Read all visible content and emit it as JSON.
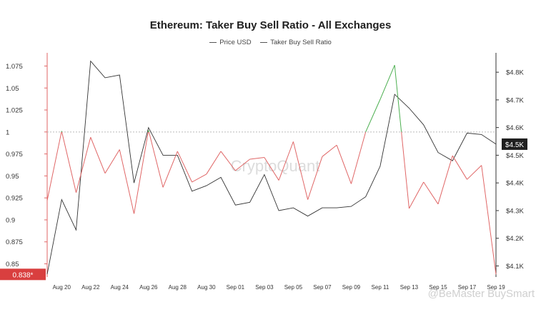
{
  "chart_data": {
    "type": "line",
    "title": "Ethereum: Taker Buy Sell Ratio - All Exchanges",
    "legend_placement": "top-center",
    "grid": false,
    "x": [
      "Aug 19",
      "Aug 20",
      "Aug 21",
      "Aug 22",
      "Aug 23",
      "Aug 24",
      "Aug 25",
      "Aug 26",
      "Aug 27",
      "Aug 28",
      "Aug 29",
      "Aug 30",
      "Aug 31",
      "Sep 01",
      "Sep 02",
      "Sep 03",
      "Sep 04",
      "Sep 05",
      "Sep 06",
      "Sep 07",
      "Sep 08",
      "Sep 09",
      "Sep 10",
      "Sep 11",
      "Sep 12",
      "Sep 13",
      "Sep 14",
      "Sep 15",
      "Sep 16",
      "Sep 17",
      "Sep 18",
      "Sep 19"
    ],
    "xticks": [
      "Aug 20",
      "Aug 22",
      "Aug 24",
      "Aug 26",
      "Aug 28",
      "Aug 30",
      "Sep 01",
      "Sep 03",
      "Sep 05",
      "Sep 07",
      "Sep 09",
      "Sep 11",
      "Sep 13",
      "Sep 15",
      "Sep 17",
      "Sep 19"
    ],
    "left_axis": {
      "ylim": [
        0.835,
        1.09
      ],
      "ticks": [
        "0.85",
        "0.875",
        "0.9",
        "0.925",
        "0.95",
        "0.975",
        "1",
        "1.025",
        "1.05",
        "1.075"
      ],
      "tick_values": [
        0.85,
        0.875,
        0.9,
        0.925,
        0.95,
        0.975,
        1,
        1.025,
        1.05,
        1.075
      ],
      "reference_line": 1
    },
    "right_axis": {
      "ylim": [
        4.06,
        4.87
      ],
      "ticks": [
        "$4.1K",
        "$4.2K",
        "$4.3K",
        "$4.4K",
        "$4.5K",
        "$4.6K",
        "$4.7K",
        "$4.8K"
      ],
      "tick_values": [
        4.1,
        4.2,
        4.3,
        4.4,
        4.5,
        4.6,
        4.7,
        4.8
      ],
      "unit_hint": "thousand USD"
    },
    "series": [
      {
        "name": "Price USD",
        "axis": "right",
        "color": "#333333",
        "values": [
          4.07,
          4.34,
          4.23,
          4.84,
          4.78,
          4.79,
          4.4,
          4.6,
          4.5,
          4.5,
          4.37,
          4.39,
          4.42,
          4.32,
          4.33,
          4.43,
          4.3,
          4.31,
          4.28,
          4.31,
          4.31,
          4.315,
          4.35,
          4.46,
          4.72,
          4.67,
          4.61,
          4.51,
          4.48,
          4.58,
          4.575,
          4.54
        ]
      },
      {
        "name": "Taker Buy Sell Ratio",
        "axis": "left",
        "color": "#e06666",
        "color_above_1": "#4caf50",
        "values": [
          0.922,
          1.001,
          0.931,
          0.994,
          0.953,
          0.98,
          0.907,
          1.002,
          0.937,
          0.978,
          0.943,
          0.952,
          0.978,
          0.956,
          0.969,
          0.971,
          0.945,
          0.989,
          0.923,
          0.972,
          0.985,
          0.941,
          1.0,
          1.037,
          1.076,
          0.913,
          0.943,
          0.918,
          0.973,
          0.946,
          0.962,
          0.838
        ]
      }
    ],
    "current_badges": {
      "left": "0.838*",
      "right": "$4.5K"
    },
    "watermark": "CryptoQuant",
    "footer_watermark": "@BeMaster BuySmart"
  }
}
